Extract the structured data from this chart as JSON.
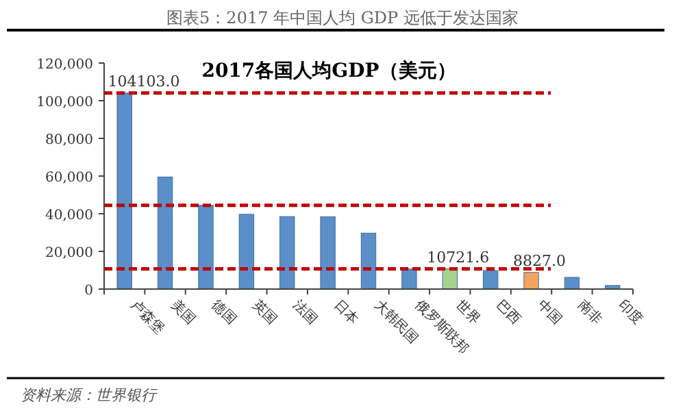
{
  "chart_data": {
    "type": "bar",
    "title": "2017各国人均GDP（美元）",
    "subtitle": "图表5：2017 年中国人均 GDP 远低于发达国家",
    "categories": [
      "卢森堡",
      "美国",
      "德国",
      "英国",
      "法国",
      "日本",
      "大韩民国",
      "俄罗斯联邦",
      "世界",
      "巴西",
      "中国",
      "南非",
      "印度"
    ],
    "values": [
      104103.0,
      59500,
      44500,
      39700,
      38500,
      38400,
      29700,
      10700,
      10721.6,
      9800,
      8827.0,
      6200,
      1900
    ],
    "colors": [
      "#5b8fc9",
      "#5b8fc9",
      "#5b8fc9",
      "#5b8fc9",
      "#5b8fc9",
      "#5b8fc9",
      "#5b8fc9",
      "#5b8fc9",
      "#a9d18e",
      "#5b8fc9",
      "#f4a460",
      "#5b8fc9",
      "#5b8fc9"
    ],
    "value_labels": [
      "104103.0",
      null,
      null,
      null,
      null,
      null,
      null,
      null,
      "10721.6",
      null,
      "8827.0",
      null,
      null
    ],
    "ylim": [
      0,
      120000
    ],
    "yticks": [
      {
        "value": 0,
        "label": "0"
      },
      {
        "value": 20000,
        "label": "20,000"
      },
      {
        "value": 40000,
        "label": "40,000"
      },
      {
        "value": 60000,
        "label": "60,000"
      },
      {
        "value": 80000,
        "label": "80,000"
      },
      {
        "value": 100000,
        "label": "100,000"
      },
      {
        "value": 120000,
        "label": "120,000"
      }
    ],
    "ref_lines": [
      {
        "axis": "y",
        "value": 104103.0,
        "color": "#c00000",
        "line_style": "dashed"
      },
      {
        "axis": "y",
        "value": 44500,
        "color": "#c00000",
        "line_style": "dashed"
      },
      {
        "axis": "y",
        "value": 10721.6,
        "color": "#c00000",
        "line_style": "dashed"
      }
    ],
    "annotations": [
      "资料来源：世界银行"
    ]
  }
}
